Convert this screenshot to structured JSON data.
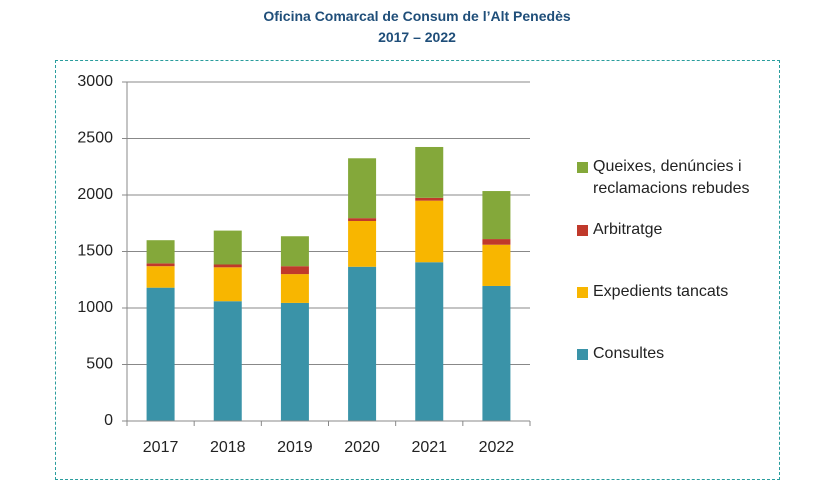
{
  "chart_data": {
    "type": "stacked-bar",
    "title": "Oficina Comarcal de Consum de l’Alt Penedès 2017 – 2022",
    "categories": [
      "2017",
      "2018",
      "2019",
      "2020",
      "2021",
      "2022"
    ],
    "series": [
      {
        "name": "Consultes",
        "color": "#3a93a8",
        "values": [
          1180,
          1060,
          1045,
          1365,
          1405,
          1195
        ]
      },
      {
        "name": "Expedients tancats",
        "color": "#f8b600",
        "values": [
          190,
          300,
          255,
          405,
          545,
          365
        ]
      },
      {
        "name": "Arbitratge",
        "color": "#c0392b",
        "values": [
          25,
          25,
          70,
          25,
          25,
          50
        ]
      },
      {
        "name": "Queixes, denúncies i reclamacions rebudes",
        "color": "#84a83a",
        "values": [
          205,
          300,
          265,
          530,
          450,
          425
        ]
      }
    ],
    "ylim": [
      0,
      3000
    ],
    "yticks": [
      0,
      500,
      1000,
      1500,
      2000,
      2500,
      3000
    ],
    "grid": true
  }
}
